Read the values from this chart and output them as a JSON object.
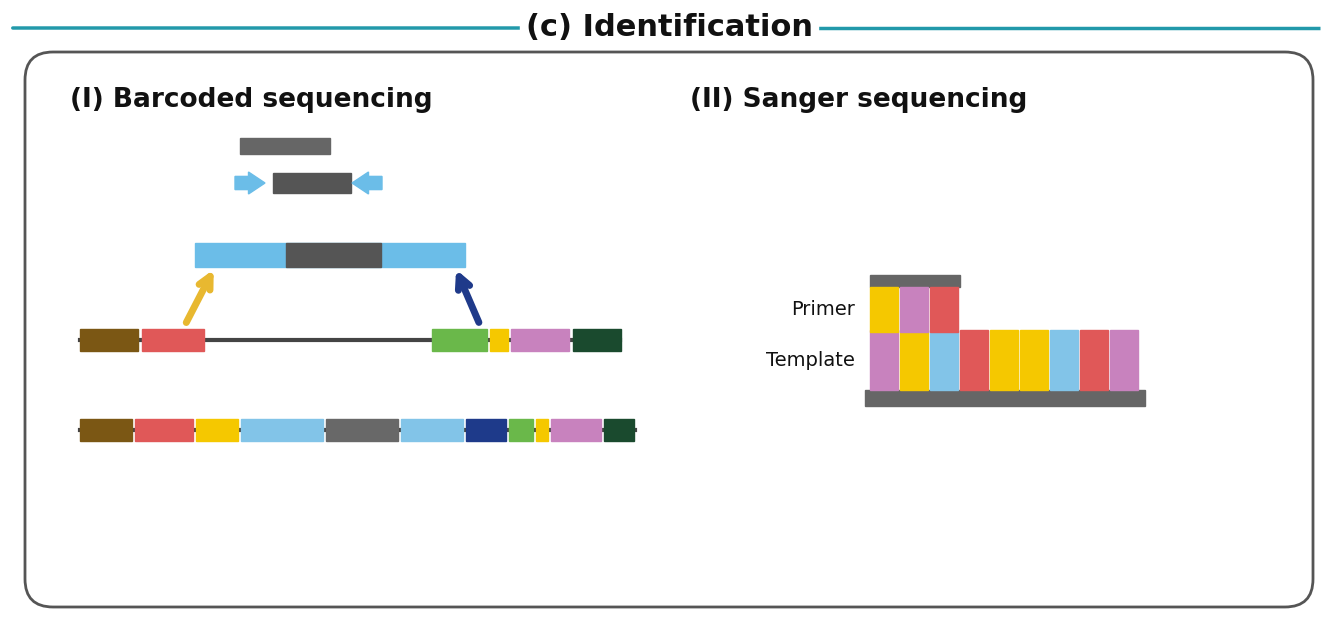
{
  "title": "(c) Identification",
  "title_fontsize": 22,
  "subtitle_I": "(I) Barcoded sequencing",
  "subtitle_II": "(II) Sanger sequencing",
  "bg_color": "#ffffff",
  "arrow_top_color": "#2299AA",
  "primer_label": "Primer",
  "template_label": "Template",
  "gray_bar_color": "#666666",
  "dark_line_color": "#444444",
  "light_blue": "#6BBDE8",
  "dark_blue_arrow": "#1F3A8A",
  "yellow_arrow": "#E8B830",
  "brown": "#7B5714",
  "red": "#E05858",
  "yellow": "#F5C800",
  "sky_blue": "#82C4E8",
  "gray": "#686868",
  "dark_blue": "#1E3A8A",
  "green": "#6AB84A",
  "pink": "#C882BE",
  "dark_green": "#1A4A2E",
  "sanger_template_colors": [
    "#C882BE",
    "#F5C800",
    "#82C4E8",
    "#E05858",
    "#F5C800",
    "#F5C800",
    "#82C4E8",
    "#E05858",
    "#C882BE"
  ],
  "sanger_primer_colors": [
    "#F5C800",
    "#C882BE",
    "#E05858"
  ]
}
